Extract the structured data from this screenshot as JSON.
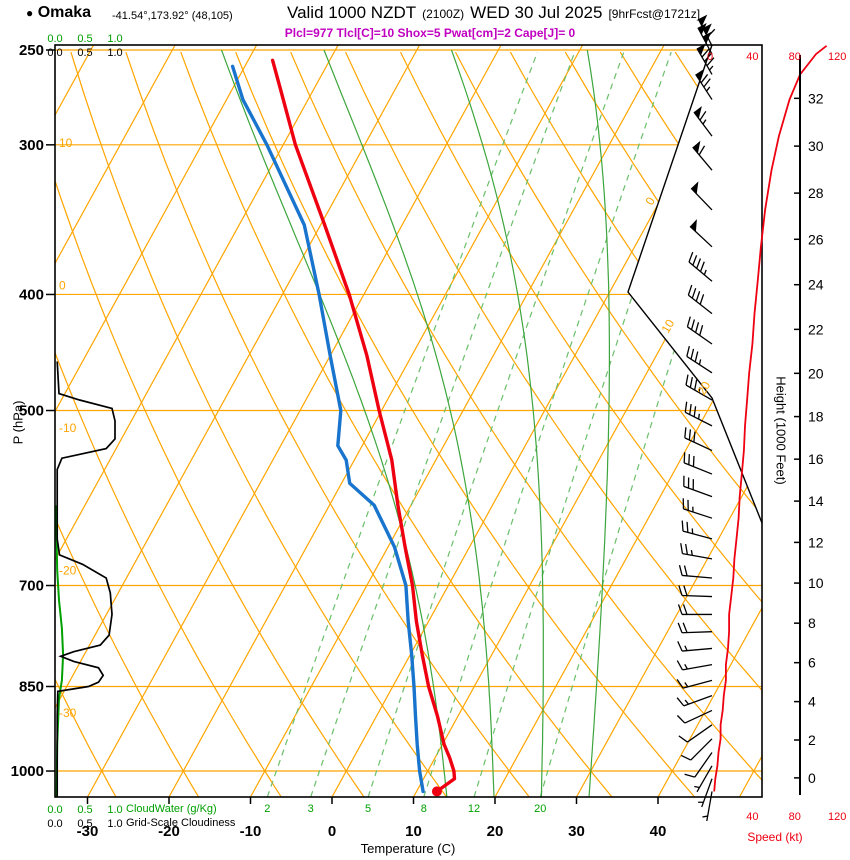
{
  "title": {
    "bullet": "●",
    "station": "Omaka",
    "coords": "-41.54°,173.92° (48,105)",
    "valid_prefix": "Valid 1000 NZDT",
    "valid_zulu": "(2100Z)",
    "valid_date": "WED 30 Jul 2025",
    "forecast_tag": "[9hrFcst@1721z]"
  },
  "params_line": "Plcl=977 Tlcl[C]=10 Shox=5 Pwat[cm]=2 Cape[J]= 0",
  "axis_labels": {
    "pressure": "P (hPa)",
    "temperature": "Temperature (C)",
    "height": "Height (1000 Feet)",
    "speed": "Speed (kt)",
    "cloudwater": "CloudWater (g/Kg)",
    "grid_scale": "Grid-Scale Cloudiness"
  },
  "colors": {
    "grid_orange": "#ffa500",
    "green_axis": "#00a000",
    "green_light": "#6abf69",
    "green_moist": "#3da53d",
    "red": "#ee0011",
    "blue": "#1874cd",
    "magenta": "#c000c0",
    "black": "#000000"
  },
  "chart_data": {
    "type": "skewt_sounding",
    "pressure_ticks": [
      250,
      300,
      400,
      500,
      700,
      850,
      1000
    ],
    "temp_ticks": [
      -30,
      -20,
      -10,
      0,
      10,
      20,
      30,
      40
    ],
    "height_ticks": [
      0,
      2,
      4,
      6,
      8,
      10,
      12,
      14,
      16,
      18,
      20,
      22,
      24,
      26,
      28,
      30,
      32
    ],
    "speed_ticks": [
      0,
      40,
      80,
      120
    ],
    "cloud_scale_ticks": [
      "0.0",
      "0.5",
      "1.0"
    ],
    "mixing_ratio_lines": [
      2,
      3,
      5,
      8,
      12,
      20
    ],
    "isotherm_labels_left": [
      "10",
      "0",
      "-10",
      "-20",
      "-30"
    ],
    "isotherm_labels_right": [
      "0",
      "10",
      "20"
    ],
    "isotherms_range": {
      "from": -100,
      "to": 50,
      "step": 10
    },
    "dry_adiabats_range": {
      "from": -30,
      "to": 150,
      "step": 10
    },
    "moist_adiabats": [
      12,
      18,
      24,
      30
    ],
    "temperature_profile": [
      [
        1040,
        12.5
      ],
      [
        1015,
        13.8
      ],
      [
        1000,
        13.2
      ],
      [
        975,
        11.8
      ],
      [
        950,
        10.2
      ],
      [
        900,
        7.5
      ],
      [
        850,
        4.4
      ],
      [
        800,
        1.5
      ],
      [
        750,
        -1.5
      ],
      [
        700,
        -4.4
      ],
      [
        650,
        -7.9
      ],
      [
        600,
        -11.6
      ],
      [
        550,
        -15.4
      ],
      [
        500,
        -20.3
      ],
      [
        450,
        -25.5
      ],
      [
        400,
        -31.8
      ],
      [
        350,
        -39.5
      ],
      [
        300,
        -48.5
      ],
      [
        270,
        -54.0
      ],
      [
        255,
        -57.0
      ]
    ],
    "dewpoint_profile": [
      [
        1040,
        10.8
      ],
      [
        1000,
        9.0
      ],
      [
        950,
        6.9
      ],
      [
        900,
        4.8
      ],
      [
        850,
        2.6
      ],
      [
        800,
        0.2
      ],
      [
        750,
        -2.5
      ],
      [
        700,
        -5.2
      ],
      [
        650,
        -9.2
      ],
      [
        600,
        -14.5
      ],
      [
        575,
        -19.0
      ],
      [
        550,
        -21.0
      ],
      [
        535,
        -23.0
      ],
      [
        500,
        -25.0
      ],
      [
        450,
        -30.0
      ],
      [
        400,
        -35.5
      ],
      [
        350,
        -42.0
      ],
      [
        300,
        -52.0
      ],
      [
        275,
        -58.0
      ],
      [
        258,
        -61.5
      ]
    ],
    "wind_profile": [
      [
        1040,
        190,
        4
      ],
      [
        1015,
        200,
        5
      ],
      [
        990,
        210,
        7
      ],
      [
        965,
        215,
        8
      ],
      [
        940,
        225,
        10
      ],
      [
        915,
        235,
        10
      ],
      [
        890,
        245,
        12
      ],
      [
        865,
        250,
        13
      ],
      [
        840,
        255,
        15
      ],
      [
        815,
        260,
        15
      ],
      [
        790,
        265,
        17
      ],
      [
        765,
        268,
        18
      ],
      [
        740,
        270,
        18
      ],
      [
        715,
        272,
        20
      ],
      [
        690,
        275,
        22
      ],
      [
        665,
        280,
        23
      ],
      [
        640,
        285,
        25
      ],
      [
        615,
        288,
        27
      ],
      [
        590,
        290,
        28
      ],
      [
        565,
        292,
        30
      ],
      [
        540,
        295,
        32
      ],
      [
        515,
        297,
        33
      ],
      [
        490,
        300,
        35
      ],
      [
        465,
        303,
        37
      ],
      [
        440,
        305,
        40
      ],
      [
        415,
        308,
        42
      ],
      [
        390,
        310,
        45
      ],
      [
        365,
        313,
        48
      ],
      [
        340,
        316,
        52
      ],
      [
        315,
        320,
        58
      ],
      [
        295,
        323,
        65
      ],
      [
        275,
        327,
        75
      ],
      [
        262,
        330,
        85
      ],
      [
        252,
        332,
        100
      ],
      [
        248,
        333,
        110
      ]
    ],
    "grid_scale_cloudiness_profile": [
      [
        1051,
        0.02
      ],
      [
        900,
        0.02
      ],
      [
        858,
        0.03
      ],
      [
        850,
        0.55
      ],
      [
        843,
        0.72
      ],
      [
        832,
        0.8
      ],
      [
        820,
        0.72
      ],
      [
        810,
        0.3
      ],
      [
        802,
        0.08
      ],
      [
        795,
        0.3
      ],
      [
        785,
        0.75
      ],
      [
        770,
        0.9
      ],
      [
        740,
        0.95
      ],
      [
        710,
        0.92
      ],
      [
        690,
        0.85
      ],
      [
        672,
        0.45
      ],
      [
        660,
        0.06
      ],
      [
        640,
        0.02
      ],
      [
        560,
        0.02
      ],
      [
        548,
        0.1
      ],
      [
        538,
        0.85
      ],
      [
        528,
        1.0
      ],
      [
        510,
        1.0
      ],
      [
        498,
        0.95
      ],
      [
        490,
        0.4
      ],
      [
        484,
        0.05
      ],
      [
        455,
        0.02
      ]
    ],
    "cloud_water_profile": [
      [
        1051,
        0.01
      ],
      [
        950,
        0.02
      ],
      [
        870,
        0.05
      ],
      [
        840,
        0.1
      ],
      [
        800,
        0.12
      ],
      [
        760,
        0.1
      ],
      [
        720,
        0.05
      ],
      [
        680,
        0.02
      ],
      [
        600,
        0.0
      ]
    ]
  }
}
